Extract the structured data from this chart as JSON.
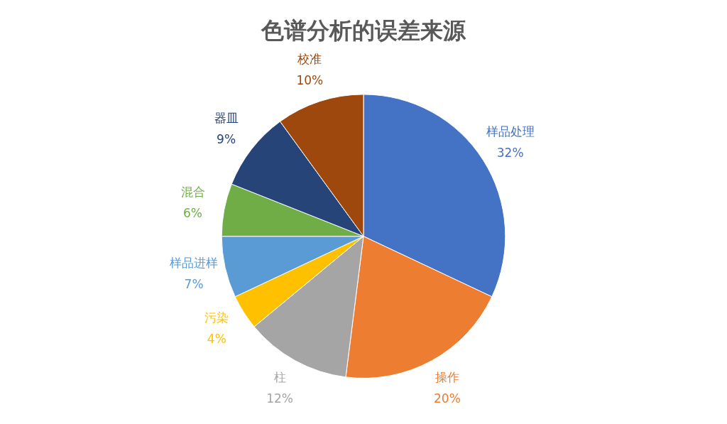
{
  "chart_data": {
    "type": "pie",
    "title": "色谱分析的误差来源",
    "categories": [
      "样品处理",
      "操作",
      "柱",
      "污染",
      "样品进样",
      "混合",
      "器皿",
      "校准"
    ],
    "values": [
      32,
      20,
      12,
      4,
      7,
      6,
      9,
      10
    ],
    "colors": [
      "#4472c4",
      "#ed7d31",
      "#a5a5a5",
      "#ffc000",
      "#5b9bd5",
      "#70ad47",
      "#264478",
      "#9e480e"
    ],
    "value_labels": [
      "32%",
      "20%",
      "12%",
      "4%",
      "7%",
      "6%",
      "9%",
      "10%"
    ],
    "legend": false
  }
}
